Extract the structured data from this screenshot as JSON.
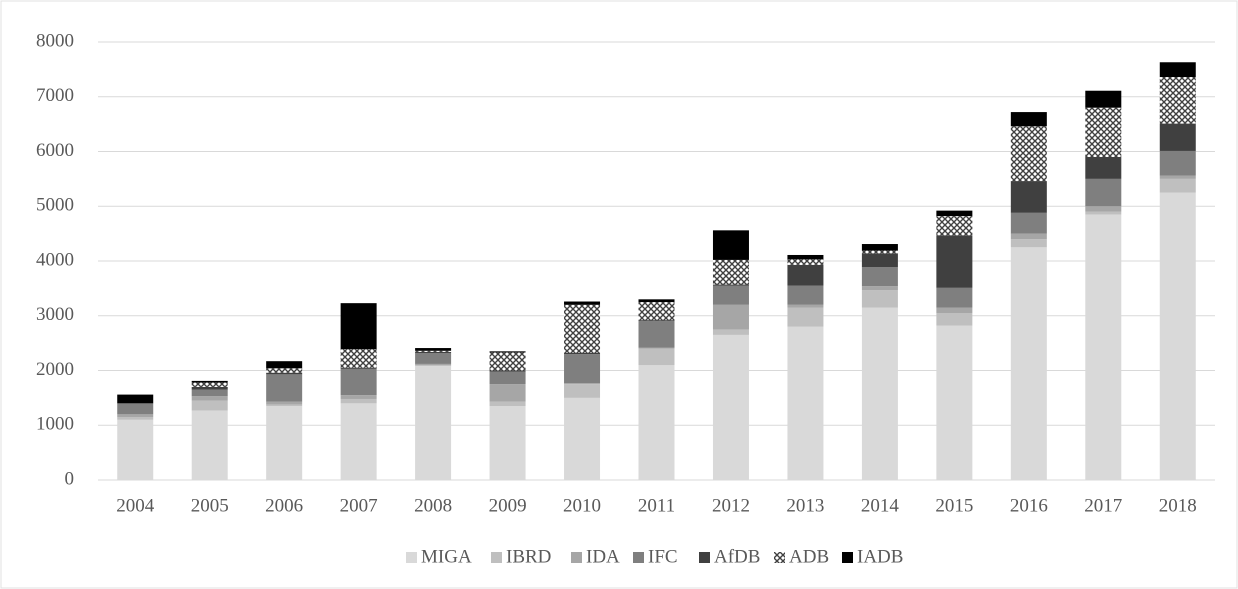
{
  "chart_data": {
    "type": "stacked_bar",
    "categories": [
      "2004",
      "2005",
      "2006",
      "2007",
      "2008",
      "2009",
      "2010",
      "2011",
      "2012",
      "2013",
      "2014",
      "2015",
      "2016",
      "2017",
      "2018"
    ],
    "series": [
      {
        "name": "MIGA",
        "color": "#d9d9d9",
        "values": [
          1100,
          1270,
          1350,
          1400,
          2080,
          1350,
          1500,
          2100,
          2650,
          2800,
          3150,
          2820,
          4250,
          4850,
          5250
        ]
      },
      {
        "name": "IBRD",
        "color": "#bfbfbf",
        "values": [
          50,
          180,
          30,
          80,
          20,
          80,
          250,
          300,
          100,
          350,
          320,
          230,
          150,
          50,
          250
        ]
      },
      {
        "name": "IDA",
        "color": "#a6a6a6",
        "values": [
          50,
          80,
          50,
          70,
          20,
          320,
          20,
          20,
          450,
          50,
          70,
          100,
          100,
          100,
          60
        ]
      },
      {
        "name": "IFC",
        "color": "#7f7f7f",
        "values": [
          200,
          120,
          500,
          480,
          200,
          230,
          530,
          480,
          350,
          350,
          350,
          360,
          380,
          500,
          450
        ]
      },
      {
        "name": "AfDB",
        "color": "#404040",
        "values": [
          0,
          50,
          30,
          20,
          20,
          20,
          20,
          20,
          20,
          380,
          250,
          960,
          580,
          400,
          500
        ]
      },
      {
        "name": "ADB",
        "color": "#808080",
        "hatch": true,
        "values": [
          0,
          80,
          80,
          340,
          20,
          330,
          880,
          330,
          450,
          100,
          50,
          350,
          1000,
          900,
          850
        ]
      },
      {
        "name": "IADB",
        "color": "#000000",
        "values": [
          160,
          30,
          130,
          840,
          50,
          20,
          60,
          50,
          540,
          80,
          120,
          100,
          260,
          310,
          270
        ]
      }
    ],
    "ylim": [
      0,
      8000
    ],
    "yticks": [
      0,
      1000,
      2000,
      3000,
      4000,
      5000,
      6000,
      7000,
      8000
    ],
    "grid": true,
    "legend": "bottom"
  }
}
